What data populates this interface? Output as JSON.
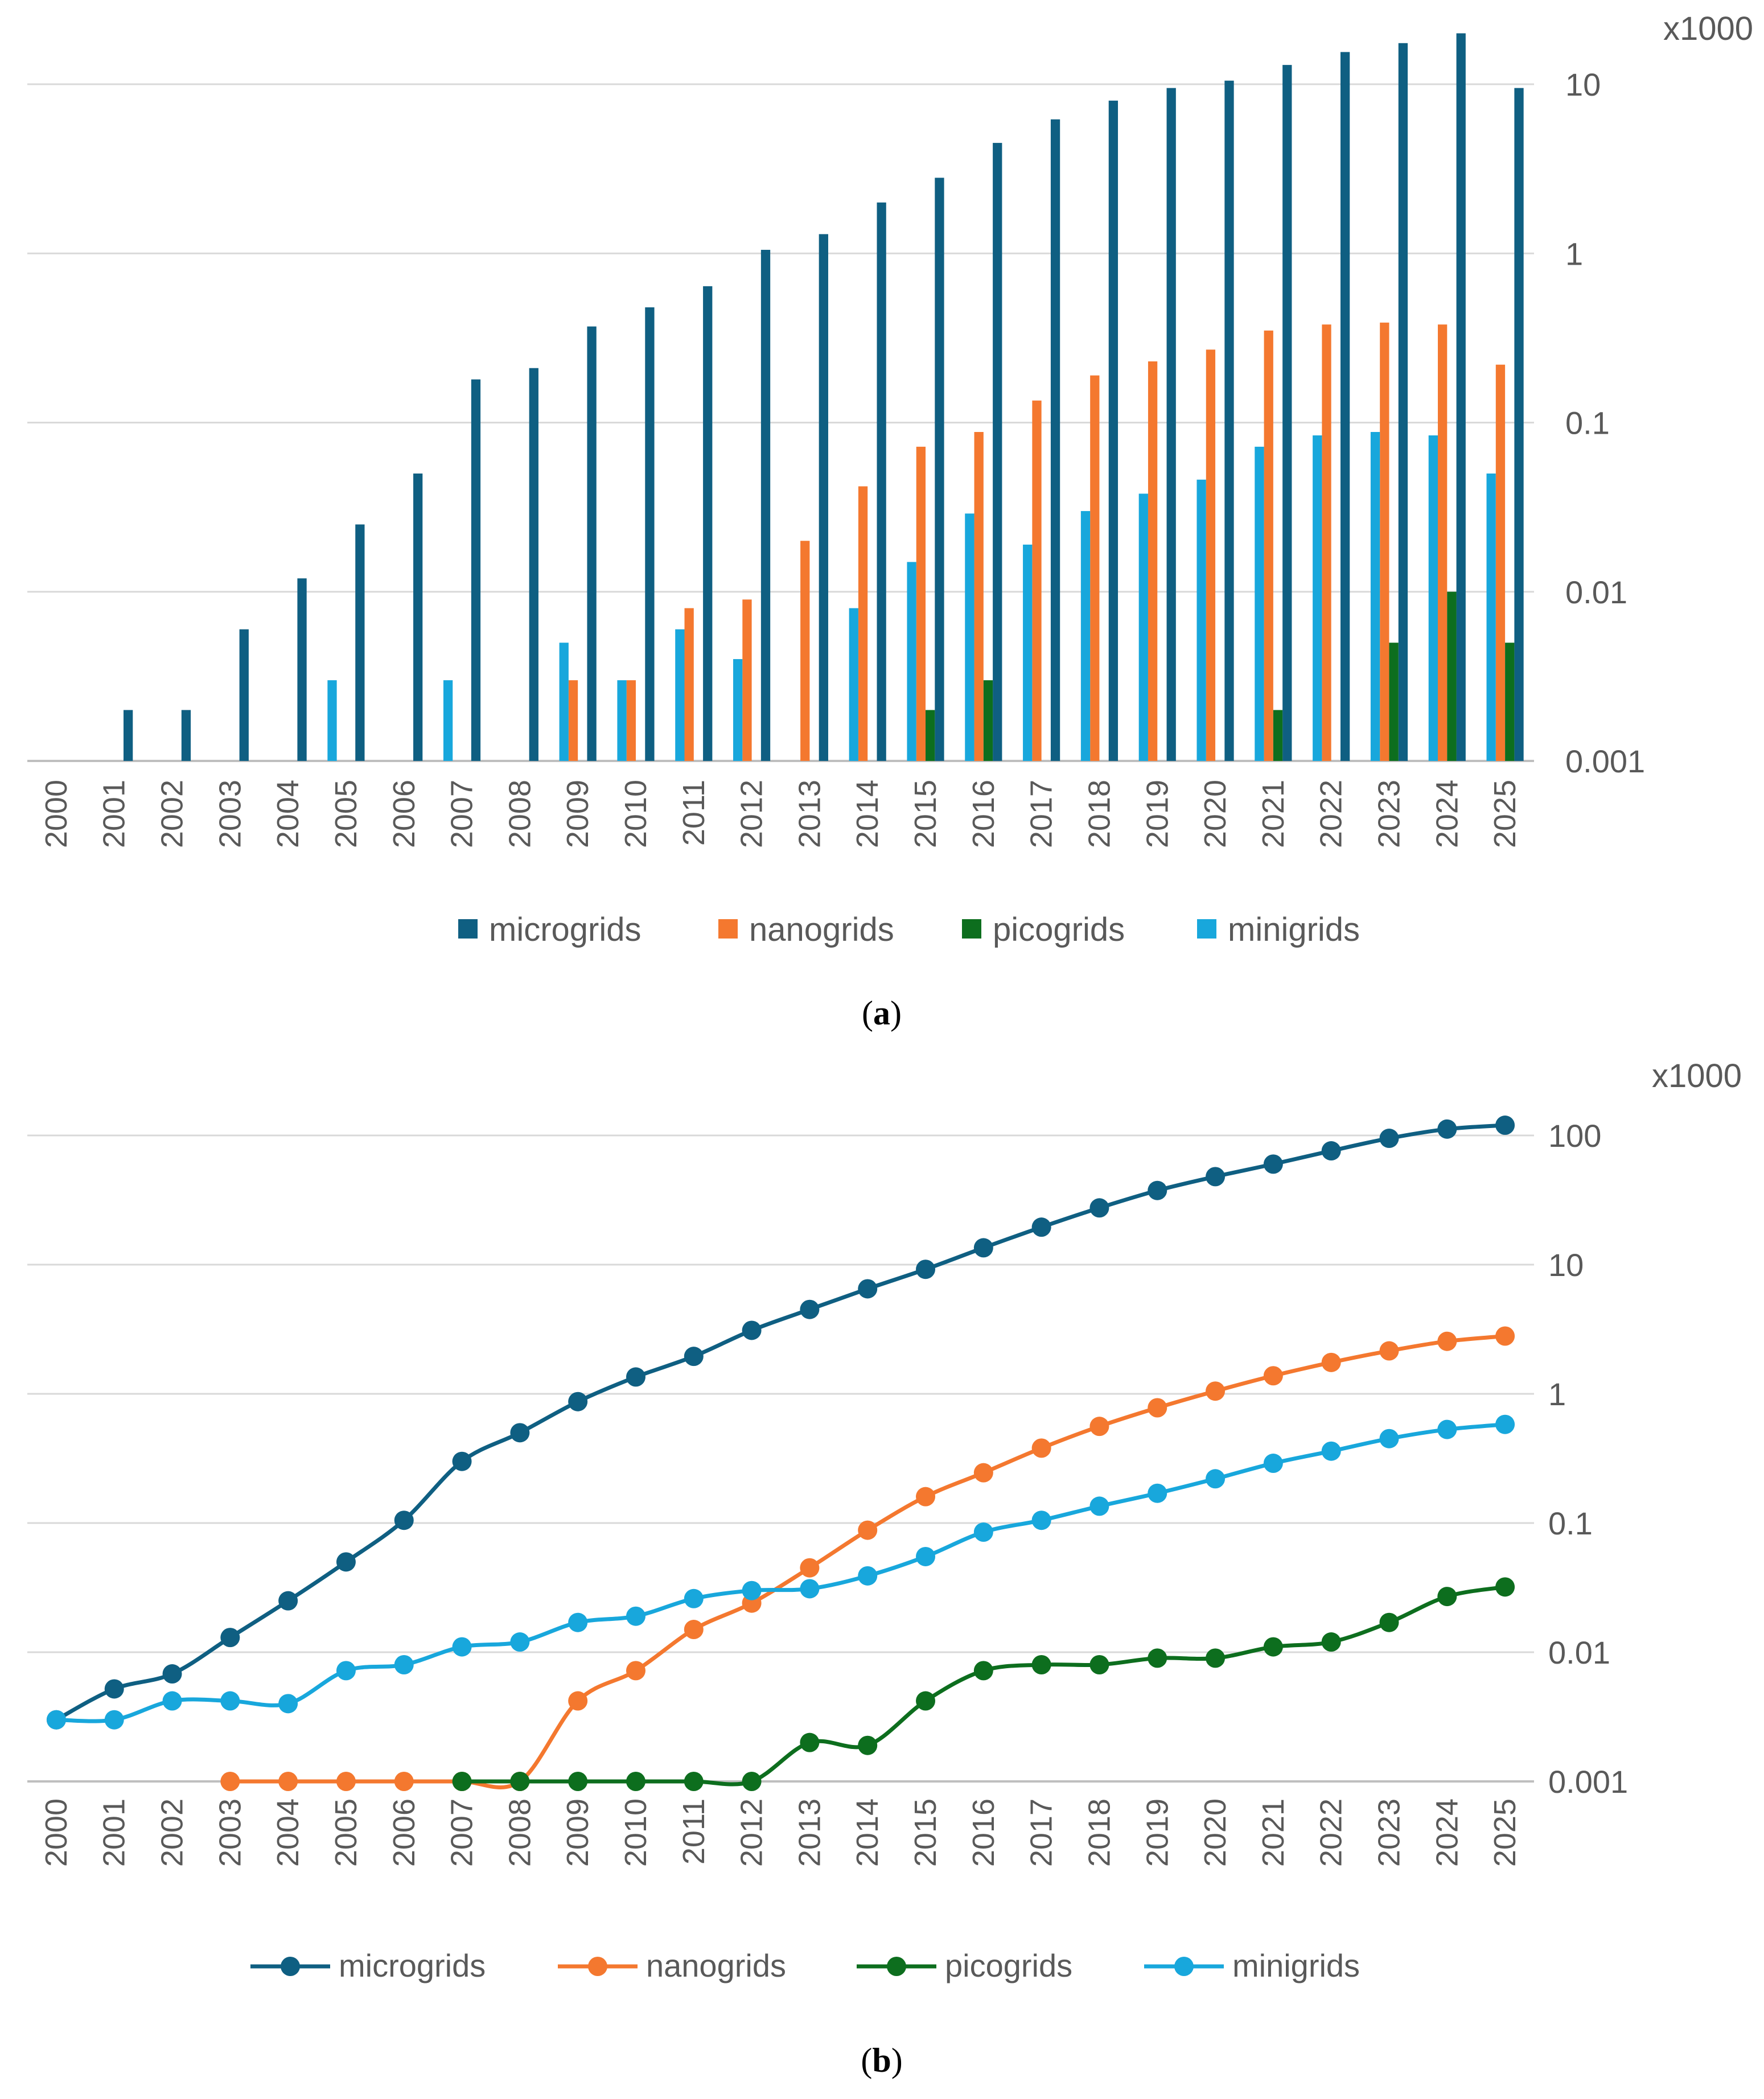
{
  "chart_data": [
    {
      "type": "bar",
      "panel_label": "(a)",
      "panel_letter": "a",
      "yscale": "log",
      "ylim": [
        0.001,
        20
      ],
      "yunit": "x1000",
      "yticks": [
        "0.001",
        "0.01",
        "0.1",
        "1",
        "10"
      ],
      "grid": true,
      "legend_position": "bottom",
      "categories": [
        "2000",
        "2001",
        "2002",
        "2003",
        "2004",
        "2005",
        "2006",
        "2007",
        "2008",
        "2009",
        "2010",
        "2011",
        "2012",
        "2013",
        "2014",
        "2015",
        "2016",
        "2017",
        "2018",
        "2019",
        "2020",
        "2021",
        "2022",
        "2023",
        "2024",
        "2025"
      ],
      "series": [
        {
          "name": "microgrids",
          "color": "#0f5f82",
          "values": [
            null,
            0.002,
            0.002,
            0.006,
            0.012,
            0.025,
            0.05,
            0.18,
            0.21,
            0.37,
            0.48,
            0.64,
            1.05,
            1.3,
            2.0,
            2.8,
            4.5,
            6.2,
            8.0,
            9.5,
            10.5,
            13,
            15.5,
            17.5,
            20,
            9.5
          ]
        },
        {
          "name": "nanogrids",
          "color": "#f4782f",
          "values": [
            null,
            null,
            null,
            null,
            null,
            null,
            null,
            null,
            null,
            0.003,
            0.003,
            0.008,
            0.009,
            0.02,
            0.042,
            0.072,
            0.088,
            0.135,
            0.19,
            0.23,
            0.27,
            0.35,
            0.38,
            0.39,
            0.38,
            0.22
          ]
        },
        {
          "name": "picogrids",
          "color": "#0d6e1e",
          "values": [
            null,
            null,
            null,
            null,
            null,
            null,
            null,
            null,
            null,
            null,
            null,
            null,
            null,
            null,
            null,
            0.002,
            0.003,
            null,
            null,
            null,
            null,
            0.002,
            null,
            0.005,
            0.01,
            0.005
          ]
        },
        {
          "name": "minigrids",
          "color": "#18a7dc",
          "values": [
            null,
            null,
            null,
            null,
            null,
            0.003,
            null,
            0.003,
            null,
            0.005,
            0.003,
            0.006,
            0.004,
            null,
            0.008,
            0.015,
            0.029,
            0.019,
            0.03,
            0.038,
            0.046,
            0.072,
            0.084,
            0.088,
            0.084,
            0.05
          ]
        }
      ]
    },
    {
      "type": "line",
      "panel_label": "(b)",
      "panel_letter": "b",
      "yscale": "log",
      "ylim": [
        0.001,
        130
      ],
      "yunit": "x1000",
      "yticks": [
        "0.001",
        "0.01",
        "0.1",
        "1",
        "10",
        "100"
      ],
      "grid": true,
      "legend_position": "bottom",
      "categories": [
        "2000",
        "2001",
        "2002",
        "2003",
        "2004",
        "2005",
        "2006",
        "2007",
        "2008",
        "2009",
        "2010",
        "2011",
        "2012",
        "2013",
        "2014",
        "2015",
        "2016",
        "2017",
        "2018",
        "2019",
        "2020",
        "2021",
        "2022",
        "2023",
        "2024",
        "2025"
      ],
      "series": [
        {
          "name": "microgrids",
          "color": "#0f5f82",
          "values": [
            0.003,
            0.0052,
            0.0068,
            0.013,
            0.025,
            0.05,
            0.105,
            0.3,
            0.5,
            0.87,
            1.35,
            1.95,
            3.1,
            4.5,
            6.5,
            9.2,
            13.5,
            19.5,
            27.5,
            37.5,
            48,
            60,
            76,
            95,
            112,
            120
          ]
        },
        {
          "name": "nanogrids",
          "color": "#f4782f",
          "values": [
            null,
            null,
            null,
            0.001,
            0.001,
            0.001,
            0.001,
            0.001,
            0.001,
            0.0042,
            0.0072,
            0.015,
            0.024,
            0.045,
            0.088,
            0.16,
            0.245,
            0.38,
            0.56,
            0.78,
            1.05,
            1.38,
            1.75,
            2.15,
            2.55,
            2.8
          ]
        },
        {
          "name": "picogrids",
          "color": "#0d6e1e",
          "values": [
            null,
            null,
            null,
            null,
            null,
            null,
            null,
            0.001,
            0.001,
            0.001,
            0.001,
            0.001,
            0.001,
            0.002,
            0.0019,
            0.0042,
            0.0072,
            0.008,
            0.008,
            0.009,
            0.009,
            0.011,
            0.012,
            0.017,
            0.027,
            0.032
          ]
        },
        {
          "name": "minigrids",
          "color": "#18a7dc",
          "values": [
            0.003,
            0.003,
            0.0042,
            0.0042,
            0.004,
            0.0072,
            0.008,
            0.011,
            0.012,
            0.017,
            0.019,
            0.026,
            0.03,
            0.031,
            0.039,
            0.055,
            0.085,
            0.105,
            0.135,
            0.17,
            0.22,
            0.29,
            0.36,
            0.45,
            0.53,
            0.58
          ]
        }
      ]
    }
  ]
}
